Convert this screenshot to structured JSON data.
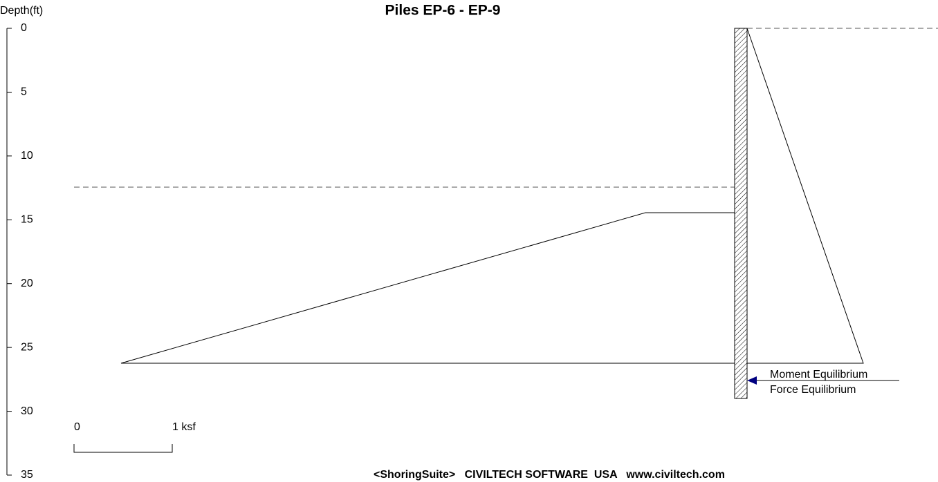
{
  "title": "Piles EP-6 - EP-9",
  "axis": {
    "label": "Depth(ft)",
    "ticks": [
      0,
      5,
      10,
      15,
      20,
      25,
      30,
      35
    ],
    "lim": [
      0,
      35
    ]
  },
  "scale": {
    "start": "0",
    "end": "1 ksf"
  },
  "legend": {
    "moment": "Moment Equilibrium",
    "force": "Force Equilibrium"
  },
  "footer": "<ShoringSuite>   CIVILTECH SOFTWARE  USA   www.civiltech.com"
}
